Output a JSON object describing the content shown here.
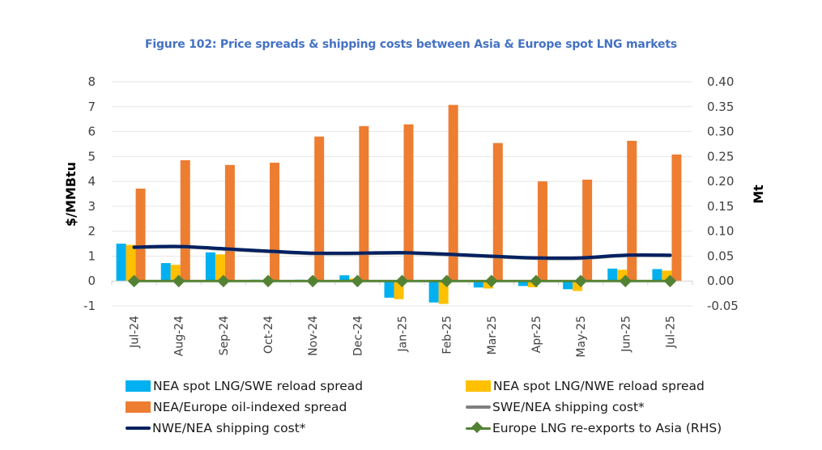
{
  "chart_data": {
    "type": "bar",
    "title": "Figure 102: Price spreads & shipping costs between Asia & Europe spot LNG markets",
    "xlabel": "",
    "ylabel": "$/MMBtu",
    "y2label": "Mt",
    "ylim": [
      -1,
      8
    ],
    "y2lim": [
      -0.05,
      0.4
    ],
    "yticks": [
      "8",
      "7",
      "6",
      "5",
      "4",
      "3",
      "2",
      "1",
      "0",
      "-1"
    ],
    "y2ticks": [
      "0.40",
      "0.35",
      "0.30",
      "0.25",
      "0.20",
      "0.15",
      "0.10",
      "0.05",
      "0.00",
      "-0.05"
    ],
    "grid": true,
    "legend_position": "bottom",
    "categories": [
      "Jul-24",
      "Aug-24",
      "Sep-24",
      "Oct-24",
      "Nov-24",
      "Dec-24",
      "Jan-25",
      "Feb-25",
      "Mar-25",
      "Apr-25",
      "May-25",
      "Jun-25",
      "Jul-25"
    ],
    "series": [
      {
        "name": "NEA spot LNG/SWE reload spread",
        "type": "bar",
        "axis": "left",
        "color": "#00b0f0",
        "values": [
          1.5,
          0.72,
          1.15,
          0.05,
          0.05,
          0.23,
          -0.67,
          -0.86,
          -0.26,
          -0.2,
          -0.33,
          0.5,
          0.48
        ]
      },
      {
        "name": "NEA spot LNG/NWE reload spread",
        "type": "bar",
        "axis": "left",
        "color": "#ffc000",
        "values": [
          1.45,
          0.65,
          1.07,
          0.0,
          0.02,
          0.1,
          -0.73,
          -0.92,
          -0.3,
          -0.25,
          -0.4,
          0.45,
          0.42
        ]
      },
      {
        "name": "NEA/Europe oil-indexed spread",
        "type": "bar",
        "axis": "left",
        "color": "#ed7d31",
        "values": [
          3.71,
          4.85,
          4.66,
          4.75,
          5.8,
          6.22,
          6.29,
          7.07,
          5.54,
          4.0,
          4.07,
          5.63,
          5.08
        ]
      },
      {
        "name": "SWE/NEA shipping cost*",
        "type": "line",
        "axis": "left",
        "color": "#808080",
        "values": [
          1.34,
          1.37,
          1.28,
          1.18,
          1.1,
          1.1,
          1.12,
          1.06,
          0.98,
          0.91,
          0.91,
          1.02,
          1.02
        ]
      },
      {
        "name": "NWE/NEA shipping cost*",
        "type": "line",
        "axis": "left",
        "color": "#002060",
        "values": [
          1.36,
          1.39,
          1.3,
          1.2,
          1.12,
          1.12,
          1.14,
          1.08,
          1.0,
          0.93,
          0.93,
          1.04,
          1.04
        ]
      },
      {
        "name": "Europe LNG re-exports to Asia (RHS)",
        "type": "line-marker",
        "axis": "right",
        "color": "#548235",
        "values": [
          0,
          0,
          0,
          0,
          0,
          0,
          0,
          0,
          0,
          0,
          0,
          0,
          0
        ]
      }
    ]
  }
}
